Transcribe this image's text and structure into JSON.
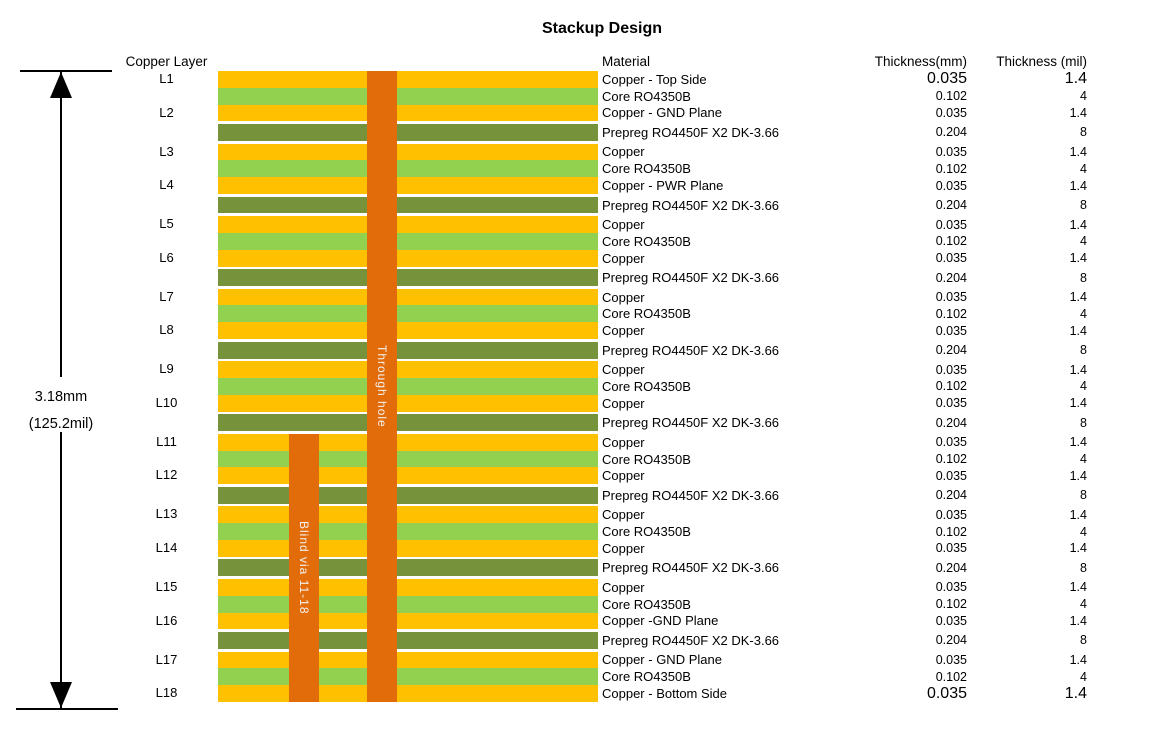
{
  "title": "Stackup Design",
  "columns": {
    "copper_layer": "Copper Layer",
    "material": "Material",
    "thickness_mm": "Thickness(mm)",
    "thickness_mil": "Thickness (mil)"
  },
  "dimension": {
    "mm": "3.18mm",
    "mil": "(125.2mil)"
  },
  "vias": [
    {
      "label": "Through hole",
      "start_layer": "L1"
    },
    {
      "label": "Blind via 11-18",
      "start_layer": "L11"
    }
  ],
  "colors": {
    "copper": "#FFC000",
    "core": "#92D050",
    "prepreg": "#76933C",
    "via": "#E36C0A",
    "via_label": "#F2F2F2"
  },
  "rows": [
    {
      "layer": "L1",
      "type": "copper",
      "material": "Copper - Top Side",
      "mm": "0.035",
      "mil": "1.4",
      "big": true
    },
    {
      "type": "core",
      "material": "Core RO4350B",
      "mm": "0.102",
      "mil": "4"
    },
    {
      "layer": "L2",
      "type": "copper",
      "material": "Copper - GND Plane",
      "mm": "0.035",
      "mil": "1.4"
    },
    {
      "type": "prepreg",
      "material": "Prepreg RO4450F X2 DK-3.66",
      "mm": "0.204",
      "mil": "8"
    },
    {
      "layer": "L3",
      "type": "copper",
      "material": "Copper",
      "mm": "0.035",
      "mil": "1.4"
    },
    {
      "type": "core",
      "material": "Core RO4350B",
      "mm": "0.102",
      "mil": "4"
    },
    {
      "layer": "L4",
      "type": "copper",
      "material": "Copper - PWR Plane",
      "mm": "0.035",
      "mil": "1.4"
    },
    {
      "type": "prepreg",
      "material": "Prepreg RO4450F X2 DK-3.66",
      "mm": "0.204",
      "mil": "8"
    },
    {
      "layer": "L5",
      "type": "copper",
      "material": "Copper",
      "mm": "0.035",
      "mil": "1.4"
    },
    {
      "type": "core",
      "material": "Core RO4350B",
      "mm": "0.102",
      "mil": "4"
    },
    {
      "layer": "L6",
      "type": "copper",
      "material": "Copper",
      "mm": "0.035",
      "mil": "1.4"
    },
    {
      "type": "prepreg",
      "material": "Prepreg RO4450F X2 DK-3.66",
      "mm": "0.204",
      "mil": "8"
    },
    {
      "layer": "L7",
      "type": "copper",
      "material": "Copper",
      "mm": "0.035",
      "mil": "1.4"
    },
    {
      "type": "core",
      "material": "Core RO4350B",
      "mm": "0.102",
      "mil": "4"
    },
    {
      "layer": "L8",
      "type": "copper",
      "material": "Copper",
      "mm": "0.035",
      "mil": "1.4"
    },
    {
      "type": "prepreg",
      "material": "Prepreg RO4450F X2 DK-3.66",
      "mm": "0.204",
      "mil": "8"
    },
    {
      "layer": "L9",
      "type": "copper",
      "material": "Copper",
      "mm": "0.035",
      "mil": "1.4"
    },
    {
      "type": "core",
      "material": "Core RO4350B",
      "mm": "0.102",
      "mil": "4"
    },
    {
      "layer": "L10",
      "type": "copper",
      "material": "Copper",
      "mm": "0.035",
      "mil": "1.4"
    },
    {
      "type": "prepreg",
      "material": "Prepreg RO4450F X2 DK-3.66",
      "mm": "0.204",
      "mil": "8"
    },
    {
      "layer": "L11",
      "type": "copper",
      "material": "Copper",
      "mm": "0.035",
      "mil": "1.4"
    },
    {
      "type": "core",
      "material": "Core RO4350B",
      "mm": "0.102",
      "mil": "4"
    },
    {
      "layer": "L12",
      "type": "copper",
      "material": "Copper",
      "mm": "0.035",
      "mil": "1.4"
    },
    {
      "type": "prepreg",
      "material": "Prepreg RO4450F X2 DK-3.66",
      "mm": "0.204",
      "mil": "8"
    },
    {
      "layer": "L13",
      "type": "copper",
      "material": "Copper",
      "mm": "0.035",
      "mil": "1.4"
    },
    {
      "type": "core",
      "material": "Core RO4350B",
      "mm": "0.102",
      "mil": "4"
    },
    {
      "layer": "L14",
      "type": "copper",
      "material": "Copper",
      "mm": "0.035",
      "mil": "1.4"
    },
    {
      "type": "prepreg",
      "material": "Prepreg RO4450F X2 DK-3.66",
      "mm": "0.204",
      "mil": "8"
    },
    {
      "layer": "L15",
      "type": "copper",
      "material": "Copper",
      "mm": "0.035",
      "mil": "1.4"
    },
    {
      "type": "core",
      "material": "Core RO4350B",
      "mm": "0.102",
      "mil": "4"
    },
    {
      "layer": "L16",
      "type": "copper",
      "material": "Copper -GND Plane",
      "mm": "0.035",
      "mil": "1.4"
    },
    {
      "type": "prepreg",
      "material": "Prepreg RO4450F X2 DK-3.66",
      "mm": "0.204",
      "mil": "8"
    },
    {
      "layer": "L17",
      "type": "copper",
      "material": "Copper - GND Plane",
      "mm": "0.035",
      "mil": "1.4"
    },
    {
      "type": "core",
      "material": "Core RO4350B",
      "mm": "0.102",
      "mil": "4"
    },
    {
      "layer": "L18",
      "type": "copper",
      "material": "Copper - Bottom Side",
      "mm": "0.035",
      "mil": "1.4",
      "big": true
    }
  ]
}
